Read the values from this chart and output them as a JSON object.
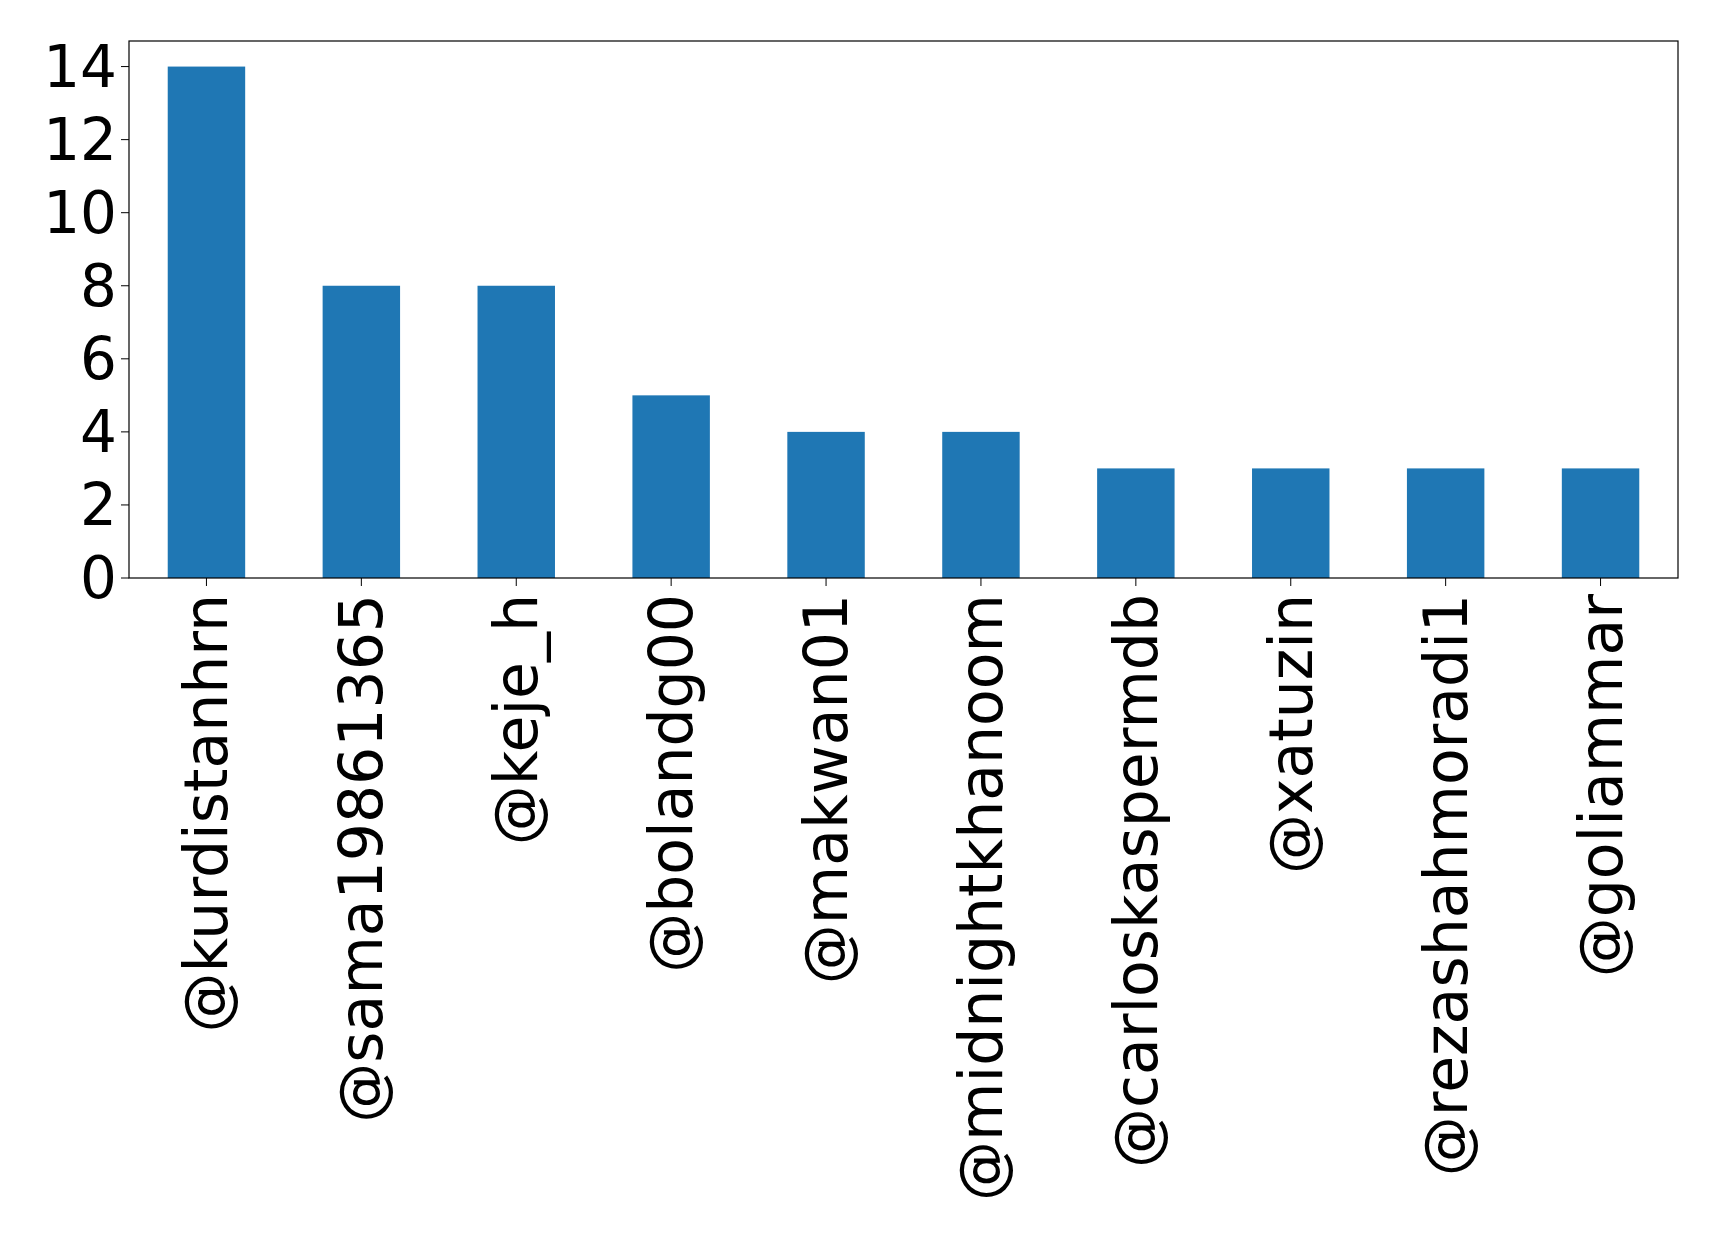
{
  "chart_data": {
    "type": "bar",
    "categories": [
      "@kurdistanhrn",
      "@sama19861365",
      "@keje_h",
      "@bolandg00",
      "@makwan01",
      "@midnightkhanoom",
      "@carloskaspermdb",
      "@xatuzin",
      "@rezashahmoradi1",
      "@goliammar"
    ],
    "values": [
      14,
      8,
      8,
      5,
      4,
      4,
      3,
      3,
      3,
      3
    ],
    "color": "#1f77b4",
    "ylim": [
      0,
      14.7
    ],
    "yticks": [
      0,
      2,
      4,
      6,
      8,
      10,
      12,
      14
    ]
  }
}
